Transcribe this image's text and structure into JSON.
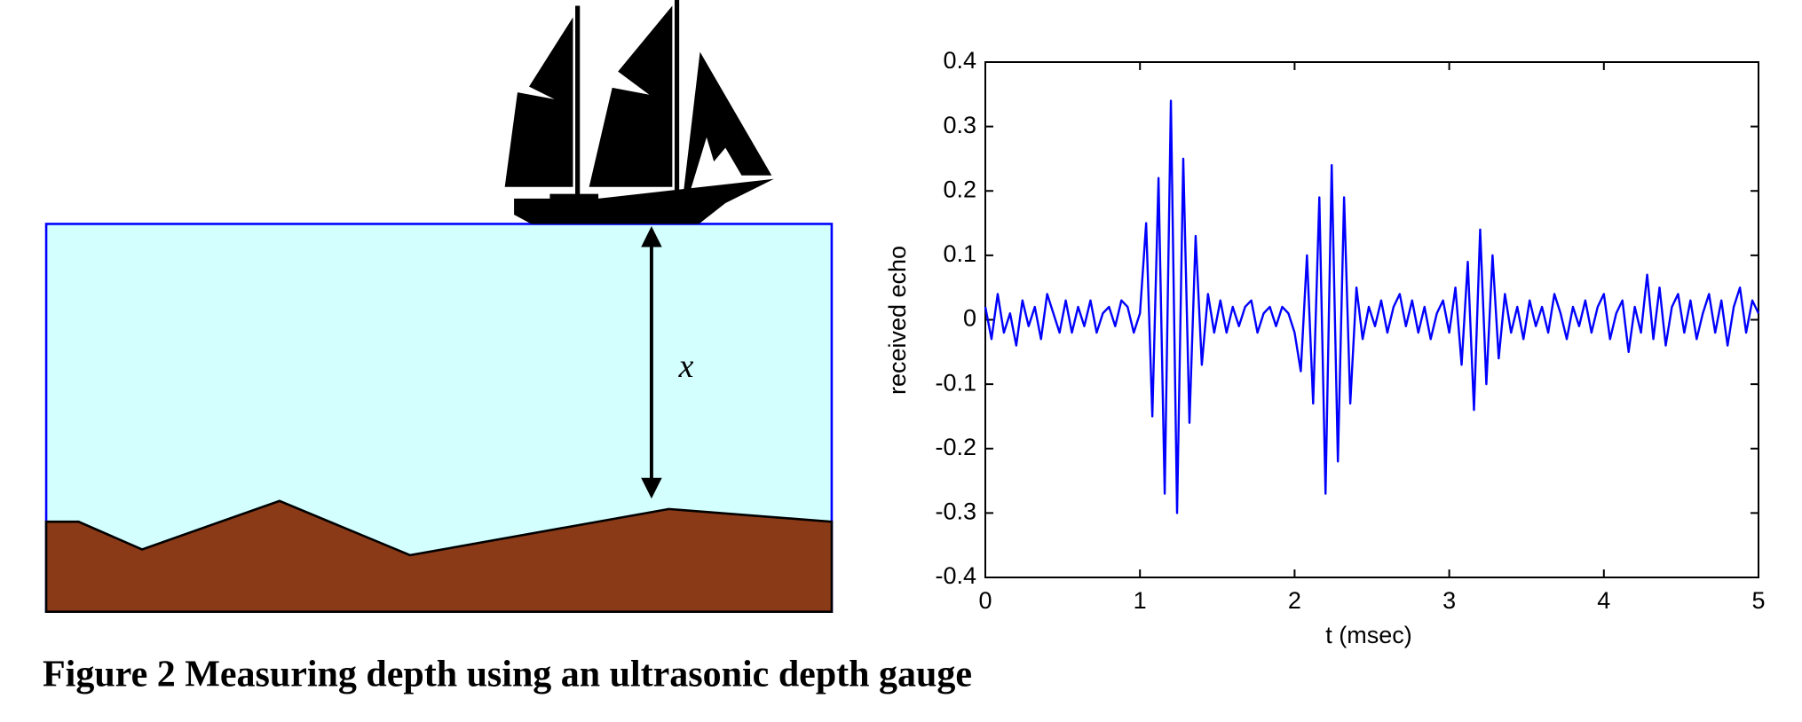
{
  "caption": "Figure 2 Measuring depth using an ultrasonic depth gauge",
  "diagram": {
    "depth_label": "x"
  },
  "chart_data": {
    "type": "line",
    "xlabel": "t (msec)",
    "ylabel": "received echo",
    "color": "#0000ff",
    "xlim": [
      0,
      5
    ],
    "ylim": [
      -0.4,
      0.4
    ],
    "xticks": [
      0,
      1,
      2,
      3,
      4,
      5
    ],
    "yticks": [
      0.4,
      0.3,
      0.2,
      0.1,
      0,
      -0.1,
      -0.2,
      -0.3,
      -0.4
    ],
    "x": [
      0,
      0.04,
      0.08,
      0.12,
      0.16,
      0.2,
      0.24,
      0.28,
      0.32,
      0.36,
      0.4,
      0.44,
      0.48,
      0.52,
      0.56,
      0.6,
      0.64,
      0.68,
      0.72,
      0.76,
      0.8,
      0.84,
      0.88,
      0.92,
      0.96,
      1,
      1.04,
      1.08,
      1.12,
      1.16,
      1.2,
      1.24,
      1.28,
      1.32,
      1.36,
      1.4,
      1.44,
      1.48,
      1.52,
      1.56,
      1.6,
      1.64,
      1.68,
      1.72,
      1.76,
      1.8,
      1.84,
      1.88,
      1.92,
      1.96,
      2,
      2.04,
      2.08,
      2.12,
      2.16,
      2.2,
      2.24,
      2.28,
      2.32,
      2.36,
      2.4,
      2.44,
      2.48,
      2.52,
      2.56,
      2.6,
      2.64,
      2.68,
      2.72,
      2.76,
      2.8,
      2.84,
      2.88,
      2.92,
      2.96,
      3,
      3.04,
      3.08,
      3.12,
      3.16,
      3.2,
      3.24,
      3.28,
      3.32,
      3.36,
      3.4,
      3.44,
      3.48,
      3.52,
      3.56,
      3.6,
      3.64,
      3.68,
      3.72,
      3.76,
      3.8,
      3.84,
      3.88,
      3.92,
      3.96,
      4,
      4.04,
      4.08,
      4.12,
      4.16,
      4.2,
      4.24,
      4.28,
      4.32,
      4.36,
      4.4,
      4.44,
      4.48,
      4.52,
      4.56,
      4.6,
      4.64,
      4.68,
      4.72,
      4.76,
      4.8,
      4.84,
      4.88,
      4.92,
      4.96,
      5
    ],
    "values": [
      0.02,
      -0.03,
      0.04,
      -0.02,
      0.01,
      -0.04,
      0.03,
      -0.01,
      0.02,
      -0.03,
      0.04,
      0.01,
      -0.02,
      0.03,
      -0.02,
      0.02,
      -0.01,
      0.03,
      -0.02,
      0.01,
      0.02,
      -0.01,
      0.03,
      0.02,
      -0.02,
      0.01,
      0.15,
      -0.15,
      0.22,
      -0.27,
      0.34,
      -0.3,
      0.25,
      -0.16,
      0.13,
      -0.07,
      0.04,
      -0.02,
      0.03,
      -0.02,
      0.02,
      -0.01,
      0.02,
      0.03,
      -0.02,
      0.01,
      0.02,
      -0.01,
      0.02,
      0.01,
      -0.02,
      -0.08,
      0.1,
      -0.13,
      0.19,
      -0.27,
      0.24,
      -0.22,
      0.19,
      -0.13,
      0.05,
      -0.03,
      0.02,
      -0.01,
      0.03,
      -0.02,
      0.02,
      0.04,
      -0.01,
      0.03,
      -0.02,
      0.02,
      -0.03,
      0.01,
      0.03,
      -0.02,
      0.05,
      -0.07,
      0.09,
      -0.14,
      0.14,
      -0.1,
      0.1,
      -0.06,
      0.04,
      -0.02,
      0.02,
      -0.03,
      0.03,
      -0.01,
      0.02,
      -0.02,
      0.04,
      0.01,
      -0.03,
      0.02,
      -0.01,
      0.03,
      -0.02,
      0.02,
      0.04,
      -0.03,
      0.01,
      0.03,
      -0.05,
      0.02,
      -0.02,
      0.07,
      -0.03,
      0.05,
      -0.04,
      0.02,
      0.04,
      -0.02,
      0.03,
      -0.03,
      0.01,
      0.04,
      -0.02,
      0.03,
      -0.04,
      0.02,
      0.05,
      -0.02,
      0.03,
      0.01
    ]
  }
}
